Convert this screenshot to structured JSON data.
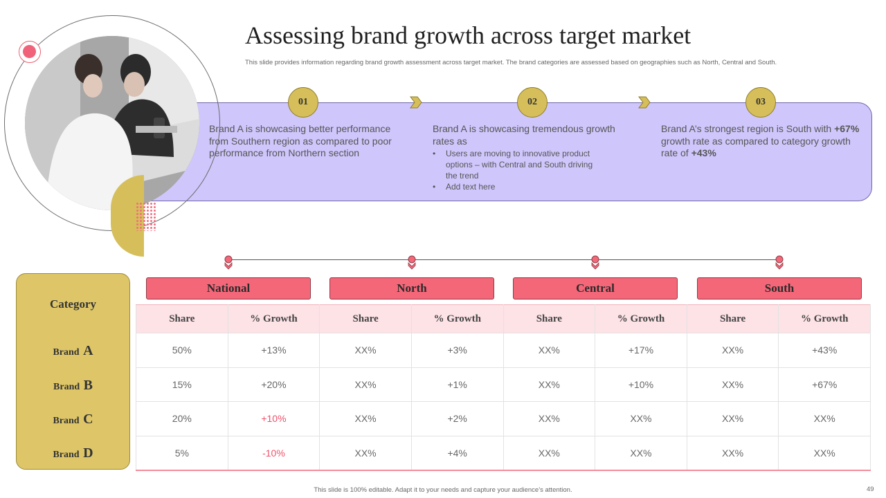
{
  "header": {
    "title": "Assessing brand growth across target market",
    "subtitle": "This slide provides information regarding brand growth assessment across target market. The brand categories are assessed based on geographies such as North, Central and South."
  },
  "steps": [
    {
      "number": "01",
      "text": "Brand A is showcasing better performance from Southern region as compared to poor performance from Northern section"
    },
    {
      "number": "02",
      "text": "Brand A is showcasing tremendous growth rates as",
      "bullets": [
        "Users are moving to innovative product options – with Central and South driving the trend",
        "Add text here"
      ]
    },
    {
      "number": "03",
      "text_a": "Brand A’s strongest region is South with ",
      "bold_a": "+67%",
      "text_b": " growth rate as compared to category growth rate of ",
      "bold_b": "+43%"
    }
  ],
  "category_panel": {
    "title": "Category",
    "brands": [
      {
        "prefix": "Brand",
        "letter": "A"
      },
      {
        "prefix": "Brand",
        "letter": "B"
      },
      {
        "prefix": "Brand",
        "letter": "C"
      },
      {
        "prefix": "Brand",
        "letter": "D"
      }
    ]
  },
  "regions": [
    "National",
    "North",
    "Central",
    "South"
  ],
  "table": {
    "columns": [
      "Share",
      "% Growth",
      "Share",
      "% Growth",
      "Share",
      "% Growth",
      "Share",
      "% Growth"
    ],
    "rows": [
      [
        "50%",
        "+13%",
        "XX%",
        "+3%",
        "XX%",
        "+17%",
        "XX%",
        "+43%"
      ],
      [
        "15%",
        "+20%",
        "XX%",
        "+1%",
        "XX%",
        "+10%",
        "XX%",
        "+67%"
      ],
      [
        "20%",
        "+10%",
        "XX%",
        "+2%",
        "XX%",
        "XX%",
        "XX%",
        "XX%"
      ],
      [
        "5%",
        "-10%",
        "XX%",
        "+4%",
        "XX%",
        "XX%",
        "XX%",
        "XX%"
      ]
    ],
    "highlight_color": "#f0506a"
  },
  "colors": {
    "accent_gold": "#d6bf5a",
    "accent_pink": "#f46779",
    "band_purple": "#cfc6fb"
  },
  "footer": {
    "note": "This slide is 100% editable. Adapt it to your needs and capture your audience’s attention.",
    "page_number": "49"
  }
}
